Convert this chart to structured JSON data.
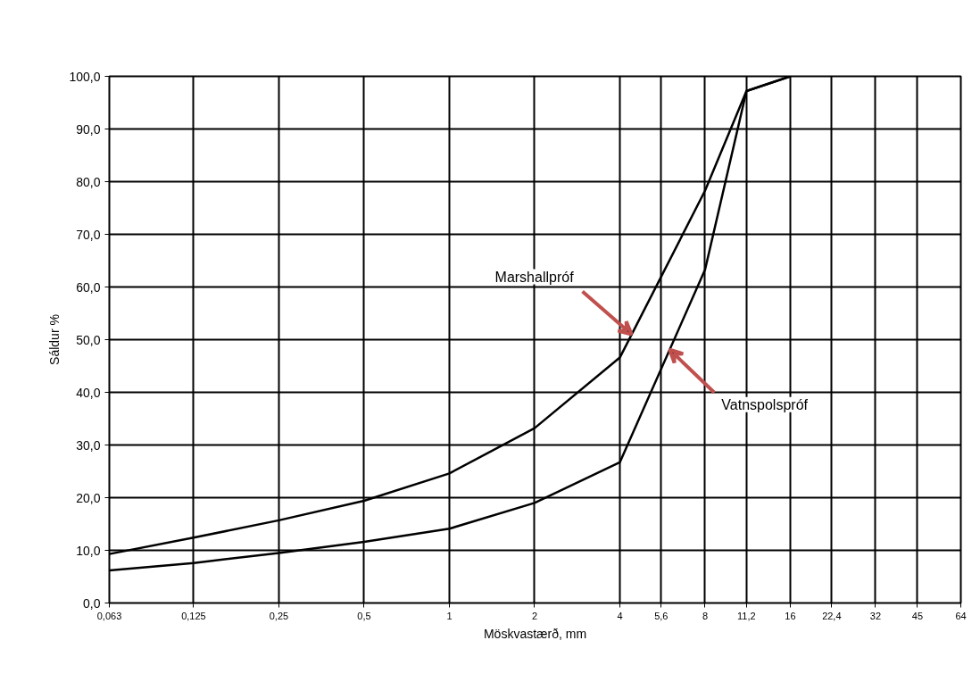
{
  "chart_data": {
    "type": "line",
    "xlabel": "Möskvastærð, mm",
    "ylabel": "Sáldur %",
    "log": "x",
    "grid": true,
    "marker": "none",
    "line_style": "solid",
    "xlim": [
      0.063,
      64
    ],
    "xticks": [
      {
        "value": 0.063,
        "label": "0,063"
      },
      {
        "value": 0.125,
        "label": "0,125"
      },
      {
        "value": 0.25,
        "label": "0,25"
      },
      {
        "value": 0.5,
        "label": "0,5"
      },
      1,
      2,
      4,
      {
        "value": 5.6,
        "label": "5,6"
      },
      8,
      {
        "value": 11.2,
        "label": "11,2"
      },
      16,
      {
        "value": 22.4,
        "label": "22,4"
      },
      32,
      45,
      64
    ],
    "ylim": [
      0,
      100
    ],
    "yticks": [
      {
        "value": 0,
        "label": "0,0"
      },
      {
        "value": 10,
        "label": "10,0"
      },
      {
        "value": 20,
        "label": "20,0"
      },
      {
        "value": 30,
        "label": "30,0"
      },
      {
        "value": 40,
        "label": "40,0"
      },
      {
        "value": 50,
        "label": "50,0"
      },
      {
        "value": 60,
        "label": "60,0"
      },
      {
        "value": 70,
        "label": "70,0"
      },
      {
        "value": 80,
        "label": "80,0"
      },
      {
        "value": 90,
        "label": "90,0"
      },
      {
        "value": 100,
        "label": "100,0"
      }
    ],
    "x": [
      0.063,
      0.125,
      0.25,
      0.5,
      1,
      2,
      4,
      8,
      11.2,
      16
    ],
    "series": [
      {
        "color": "#000000",
        "values": [
          9.3,
          12.4,
          15.7,
          19.4,
          24.6,
          33.2,
          46.6,
          78.3,
          97.2,
          100
        ]
      },
      {
        "color": "#000000",
        "values": [
          6.2,
          7.6,
          9.5,
          11.6,
          14.1,
          19.0,
          26.7,
          63.3,
          97.2,
          100
        ]
      }
    ],
    "annotations": [
      {
        "text": "Marshallpróf",
        "x": 4.4,
        "y": 51.0
      },
      {
        "text": "Vatnspolspróf",
        "x": 6.0,
        "y": 48.1
      }
    ]
  }
}
